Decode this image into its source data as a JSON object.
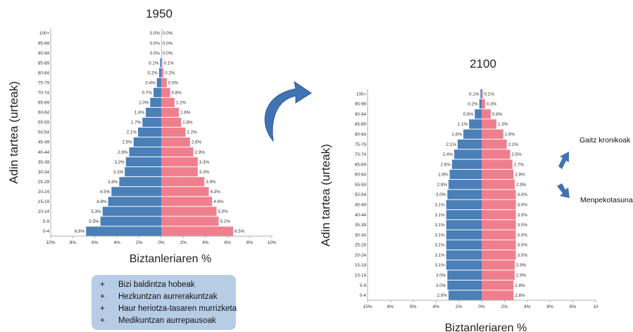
{
  "chart_data": [
    {
      "type": "population-pyramid",
      "title": "1950",
      "ylabel": "Adin tartea (urteak)",
      "xlabel": "Biztanleriaren %",
      "xticks": [
        "10%",
        "8%",
        "6%",
        "4%",
        "2%",
        "0%",
        "2%",
        "4%",
        "6%",
        "8%",
        "10%"
      ],
      "categories": [
        "0-4",
        "5-9",
        "10-14",
        "15-19",
        "20-24",
        "25-29",
        "30-34",
        "35-39",
        "40-44",
        "45-49",
        "50-54",
        "55-59",
        "60-64",
        "65-69",
        "70-74",
        "75-79",
        "80-84",
        "85-89",
        "90-94",
        "95-99",
        "100+"
      ],
      "series": [
        {
          "color": "#4a7fb7",
          "values": [
            6.8,
            5.5,
            5.3,
            4.8,
            4.5,
            3.8,
            3.3,
            3.2,
            2.9,
            2.5,
            2.1,
            1.7,
            1.4,
            1.0,
            0.7,
            0.4,
            0.2,
            0.1,
            0.0,
            0.0,
            0.0
          ]
        },
        {
          "color": "#f07f8e",
          "values": [
            6.5,
            5.2,
            5.0,
            4.6,
            4.3,
            3.9,
            3.3,
            3.3,
            2.9,
            2.6,
            2.2,
            1.8,
            1.6,
            1.2,
            0.8,
            0.5,
            0.2,
            0.1,
            0.0,
            0.0,
            0.0
          ]
        }
      ],
      "xlim": [
        -10,
        10
      ]
    },
    {
      "type": "population-pyramid",
      "title": "2100",
      "ylabel": "Adin tartea (urteak)",
      "xlabel": "Biztanleriaren %",
      "xticks": [
        "10%",
        "8%",
        "6%",
        "4%",
        "2%",
        "0%",
        "2%",
        "4%",
        "6%",
        "8%",
        "10"
      ],
      "categories": [
        "0-4",
        "5-9",
        "10-14",
        "15-19",
        "20-24",
        "25-29",
        "30-34",
        "35-39",
        "40-44",
        "45-49",
        "50-54",
        "55-59",
        "60-64",
        "65-69",
        "70-74",
        "75-79",
        "80-84",
        "85-89",
        "90-94",
        "95-99",
        "100+"
      ],
      "series": [
        {
          "color": "#4a7fb7",
          "values": [
            2.9,
            3.0,
            3.0,
            3.1,
            3.1,
            3.1,
            3.1,
            3.1,
            3.1,
            3.1,
            3.0,
            2.9,
            2.8,
            2.6,
            2.4,
            2.1,
            1.6,
            1.1,
            0.6,
            0.2,
            0.1
          ]
        },
        {
          "color": "#f07f8e",
          "values": [
            2.8,
            2.8,
            2.9,
            2.9,
            3.0,
            3.0,
            3.0,
            3.0,
            3.0,
            3.0,
            3.0,
            2.9,
            2.8,
            2.7,
            2.5,
            2.2,
            1.9,
            1.3,
            0.8,
            0.3,
            0.1
          ]
        }
      ],
      "xlim": [
        -10,
        10
      ]
    }
  ],
  "bullets": {
    "marker": "+",
    "items": [
      "Bizi baldintza hobeak",
      "Hezkuntzan aurrerakuntzak",
      "Haur heriotza-tasaren murrizketa",
      "Medikuntzan aurrepausoak"
    ]
  },
  "notes": {
    "up": "Gaitz kronikoak",
    "down": "Menpekotasuna"
  },
  "colors": {
    "arrow": "#3f73b3",
    "bullet_box": "#b7cde6"
  }
}
